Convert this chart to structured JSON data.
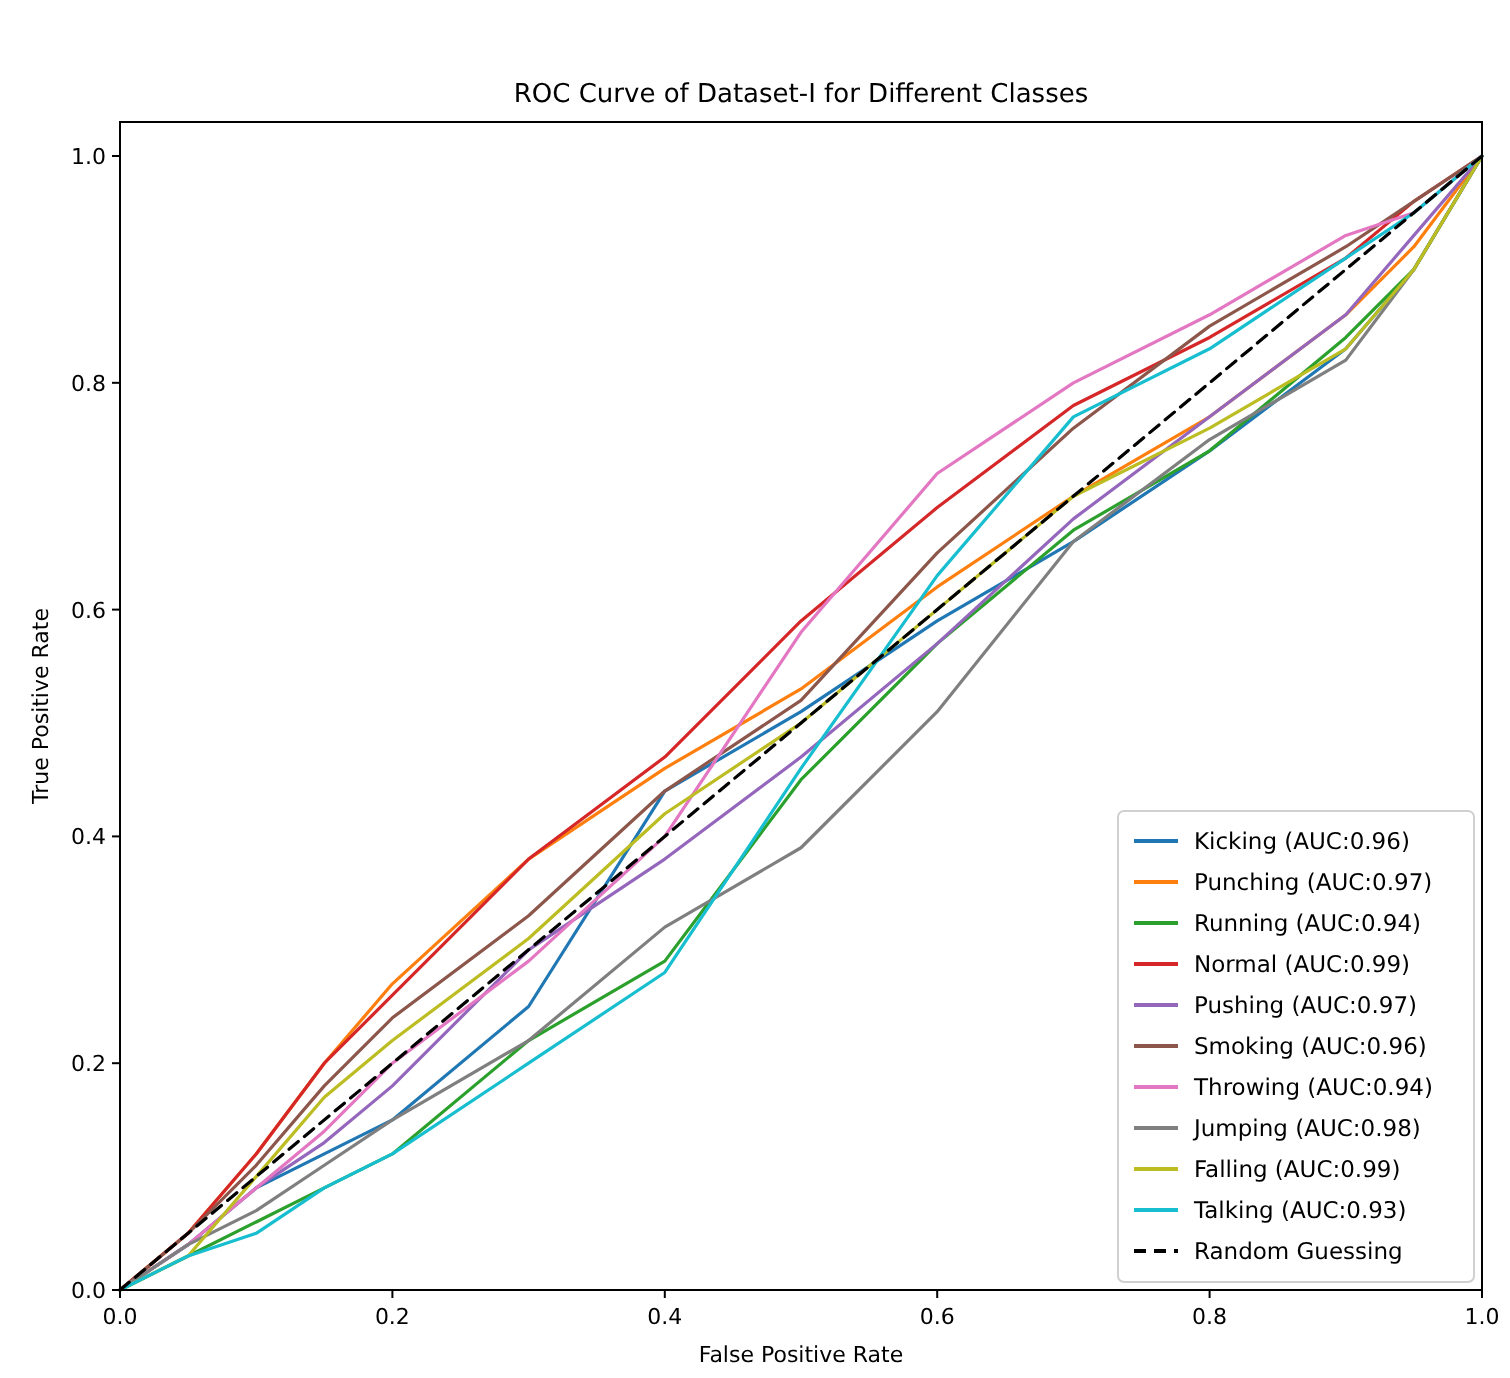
{
  "chart_data": {
    "type": "line",
    "title": "ROC Curve of Dataset-I for Different Classes",
    "xlabel": "False Positive Rate",
    "ylabel": "True Positive Rate",
    "x": [
      0,
      0.05,
      0.1,
      0.15,
      0.2,
      0.3,
      0.4,
      0.5,
      0.6,
      0.7,
      0.8,
      0.9,
      0.95,
      1
    ],
    "series": [
      {
        "name": "Kicking (AUC:0.96)",
        "color": "#1f77b4",
        "values": [
          0,
          0.04,
          0.09,
          0.12,
          0.15,
          0.25,
          0.44,
          0.51,
          0.59,
          0.66,
          0.74,
          0.83,
          0.9,
          1
        ]
      },
      {
        "name": "Punching (AUC:0.97)",
        "color": "#ff7f0e",
        "values": [
          0,
          0.05,
          0.12,
          0.2,
          0.27,
          0.38,
          0.46,
          0.53,
          0.62,
          0.7,
          0.77,
          0.86,
          0.92,
          1
        ]
      },
      {
        "name": "Running (AUC:0.94)",
        "color": "#2ca02c",
        "values": [
          0,
          0.03,
          0.06,
          0.09,
          0.12,
          0.22,
          0.29,
          0.45,
          0.57,
          0.67,
          0.74,
          0.84,
          0.9,
          1
        ]
      },
      {
        "name": "Normal (AUC:0.99)",
        "color": "#d62728",
        "values": [
          0,
          0.05,
          0.12,
          0.2,
          0.26,
          0.38,
          0.47,
          0.59,
          0.69,
          0.78,
          0.84,
          0.91,
          0.96,
          1
        ]
      },
      {
        "name": "Pushing (AUC:0.97)",
        "color": "#9467bd",
        "values": [
          0,
          0.04,
          0.09,
          0.13,
          0.18,
          0.3,
          0.38,
          0.47,
          0.57,
          0.68,
          0.77,
          0.86,
          0.93,
          1
        ]
      },
      {
        "name": "Smoking (AUC:0.96)",
        "color": "#8c564b",
        "values": [
          0,
          0.05,
          0.11,
          0.18,
          0.24,
          0.33,
          0.44,
          0.52,
          0.65,
          0.76,
          0.85,
          0.92,
          0.96,
          1
        ]
      },
      {
        "name": "Throwing (AUC:0.94)",
        "color": "#e377c2",
        "values": [
          0,
          0.04,
          0.09,
          0.14,
          0.2,
          0.29,
          0.4,
          0.58,
          0.72,
          0.8,
          0.86,
          0.93,
          0.95,
          1
        ]
      },
      {
        "name": "Jumping (AUC:0.98)",
        "color": "#7f7f7f",
        "values": [
          0,
          0.04,
          0.07,
          0.11,
          0.15,
          0.22,
          0.32,
          0.39,
          0.51,
          0.66,
          0.75,
          0.82,
          0.9,
          1
        ]
      },
      {
        "name": "Falling (AUC:0.99)",
        "color": "#bcbd22",
        "values": [
          0,
          0.03,
          0.1,
          0.17,
          0.22,
          0.31,
          0.42,
          0.5,
          0.6,
          0.7,
          0.76,
          0.83,
          0.9,
          1
        ]
      },
      {
        "name": "Talking (AUC:0.93)",
        "color": "#17becf",
        "values": [
          0,
          0.03,
          0.05,
          0.09,
          0.12,
          0.2,
          0.28,
          0.46,
          0.63,
          0.77,
          0.83,
          0.91,
          0.95,
          1
        ]
      },
      {
        "name": "Random Guessing",
        "color": "#000000",
        "x": [
          0,
          1
        ],
        "values": [
          0,
          1
        ],
        "line_style": "dashed"
      }
    ],
    "xlim": [
      0,
      1
    ],
    "ylim": [
      0,
      1.03
    ],
    "xticks": [
      {
        "value": 0,
        "label": "0.0"
      },
      0.2,
      0.4,
      0.6,
      0.8,
      {
        "value": 1,
        "label": "1.0"
      }
    ],
    "yticks": [
      {
        "value": 0,
        "label": "0.0"
      },
      0.2,
      0.4,
      0.6,
      0.8,
      {
        "value": 1,
        "label": "1.0"
      }
    ],
    "legend": "bottom right",
    "grid": false
  }
}
